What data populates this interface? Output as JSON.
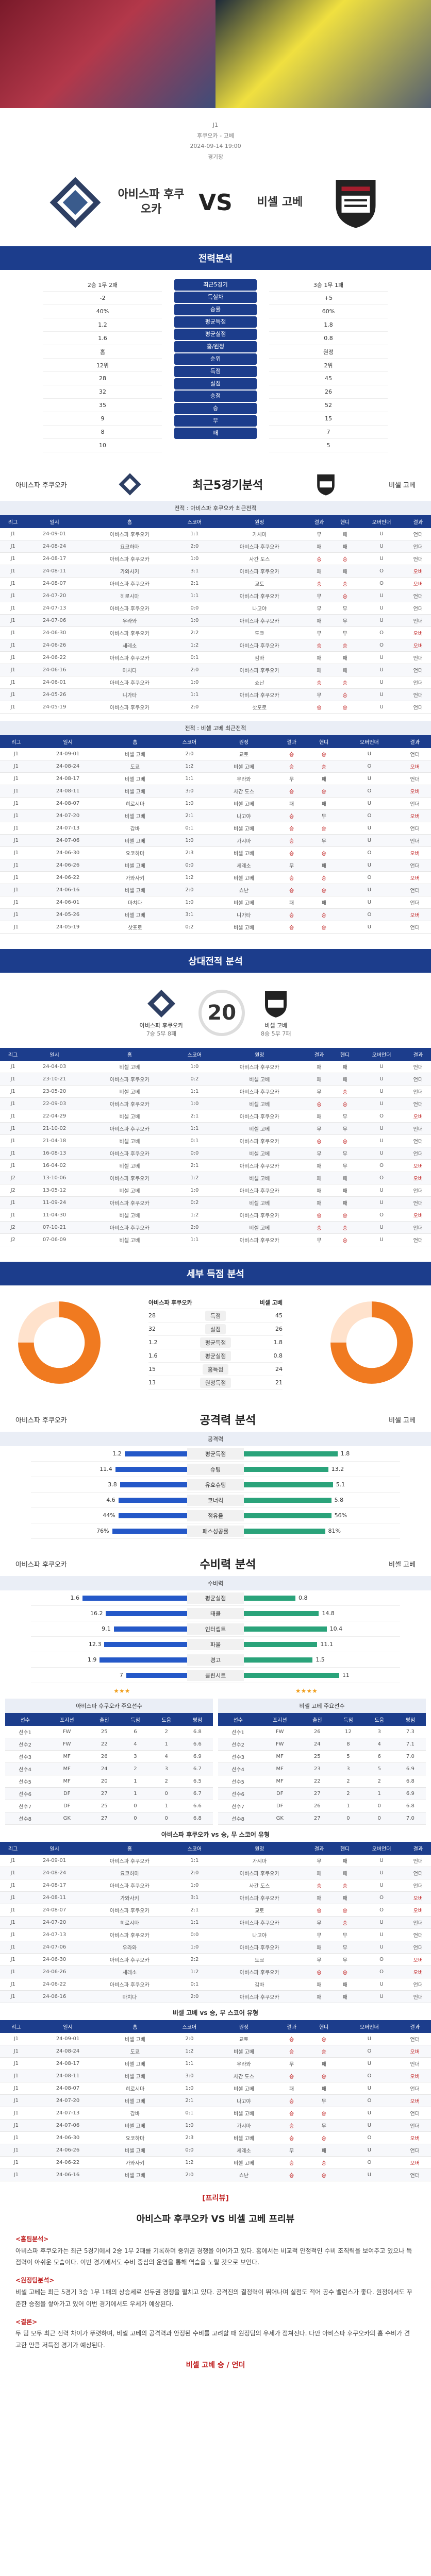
{
  "hero": {
    "left_alt": "",
    "right_alt": ""
  },
  "match": {
    "league": "J1",
    "title": "후쿠오카 - 고베",
    "kickoff": "2024-09-14 19:00",
    "venue": "경기장"
  },
  "home": {
    "name": "아비스파 후쿠오카",
    "short": "아비스파 후쿠오카"
  },
  "away": {
    "name": "비셀 고베",
    "short": "비셀 고베"
  },
  "vs": "VS",
  "sections": {
    "compare": "전력분석",
    "recent": "최근5경기분석",
    "h2h": "상대전적 분석",
    "detail": "세부 득점 분석",
    "attack": "공격력 분석",
    "defense": "수비력 분석",
    "preview_title": "아비스파 후쿠오카 VS 비셀 고베 프리뷰"
  },
  "compare_rows": {
    "labels": [
      "최근5경기",
      "득실차",
      "승률",
      "평균득점",
      "평균실점",
      "홈/원정",
      "순위",
      "득점",
      "실점",
      "승점",
      "승",
      "무",
      "패"
    ],
    "home": [
      "2승 1무 2패",
      "-2",
      "40%",
      "1.2",
      "1.6",
      "홈",
      "12위",
      "28",
      "32",
      "35",
      "9",
      "8",
      "10"
    ],
    "away": [
      "3승 1무 1패",
      "+5",
      "60%",
      "1.8",
      "0.8",
      "원정",
      "2위",
      "45",
      "26",
      "52",
      "15",
      "7",
      "5"
    ]
  },
  "recent_home_header": "전적 : 아비스파 후쿠오카 최근전적",
  "recent_away_header": "전적 : 비셀 고베 최근전적",
  "table_cols": [
    "리그",
    "일시",
    "홈",
    "스코어",
    "원정",
    "결과",
    "핸디",
    "오버언더",
    "결과"
  ],
  "recent_home": [
    [
      "J1",
      "24-09-01",
      "아비스파 후쿠오카",
      "1:1",
      "가시마",
      "무",
      "패",
      "U",
      "언더"
    ],
    [
      "J1",
      "24-08-24",
      "요코하마",
      "2:0",
      "아비스파 후쿠오카",
      "패",
      "패",
      "U",
      "언더"
    ],
    [
      "J1",
      "24-08-17",
      "아비스파 후쿠오카",
      "1:0",
      "사간 도스",
      "승",
      "승",
      "U",
      "언더"
    ],
    [
      "J1",
      "24-08-11",
      "가와사키",
      "3:1",
      "아비스파 후쿠오카",
      "패",
      "패",
      "O",
      "오버"
    ],
    [
      "J1",
      "24-08-07",
      "아비스파 후쿠오카",
      "2:1",
      "교토",
      "승",
      "승",
      "O",
      "오버"
    ],
    [
      "J1",
      "24-07-20",
      "히로시마",
      "1:1",
      "아비스파 후쿠오카",
      "무",
      "승",
      "U",
      "언더"
    ],
    [
      "J1",
      "24-07-13",
      "아비스파 후쿠오카",
      "0:0",
      "나고야",
      "무",
      "무",
      "U",
      "언더"
    ],
    [
      "J1",
      "24-07-06",
      "우라와",
      "1:0",
      "아비스파 후쿠오카",
      "패",
      "무",
      "U",
      "언더"
    ],
    [
      "J1",
      "24-06-30",
      "아비스파 후쿠오카",
      "2:2",
      "도쿄",
      "무",
      "무",
      "O",
      "오버"
    ],
    [
      "J1",
      "24-06-26",
      "세레소",
      "1:2",
      "아비스파 후쿠오카",
      "승",
      "승",
      "O",
      "오버"
    ],
    [
      "J1",
      "24-06-22",
      "아비스파 후쿠오카",
      "0:1",
      "감바",
      "패",
      "패",
      "U",
      "언더"
    ],
    [
      "J1",
      "24-06-16",
      "마치다",
      "2:0",
      "아비스파 후쿠오카",
      "패",
      "패",
      "U",
      "언더"
    ],
    [
      "J1",
      "24-06-01",
      "아비스파 후쿠오카",
      "1:0",
      "쇼난",
      "승",
      "승",
      "U",
      "언더"
    ],
    [
      "J1",
      "24-05-26",
      "니가타",
      "1:1",
      "아비스파 후쿠오카",
      "무",
      "승",
      "U",
      "언더"
    ],
    [
      "J1",
      "24-05-19",
      "아비스파 후쿠오카",
      "2:0",
      "삿포로",
      "승",
      "승",
      "U",
      "언더"
    ]
  ],
  "recent_away": [
    [
      "J1",
      "24-09-01",
      "비셀 고베",
      "2:0",
      "교토",
      "승",
      "승",
      "U",
      "언더"
    ],
    [
      "J1",
      "24-08-24",
      "도쿄",
      "1:2",
      "비셀 고베",
      "승",
      "승",
      "O",
      "오버"
    ],
    [
      "J1",
      "24-08-17",
      "비셀 고베",
      "1:1",
      "우라와",
      "무",
      "패",
      "U",
      "언더"
    ],
    [
      "J1",
      "24-08-11",
      "비셀 고베",
      "3:0",
      "사간 도스",
      "승",
      "승",
      "O",
      "오버"
    ],
    [
      "J1",
      "24-08-07",
      "히로시마",
      "1:0",
      "비셀 고베",
      "패",
      "패",
      "U",
      "언더"
    ],
    [
      "J1",
      "24-07-20",
      "비셀 고베",
      "2:1",
      "나고야",
      "승",
      "무",
      "O",
      "오버"
    ],
    [
      "J1",
      "24-07-13",
      "감바",
      "0:1",
      "비셀 고베",
      "승",
      "승",
      "U",
      "언더"
    ],
    [
      "J1",
      "24-07-06",
      "비셀 고베",
      "1:0",
      "가시마",
      "승",
      "무",
      "U",
      "언더"
    ],
    [
      "J1",
      "24-06-30",
      "요코하마",
      "2:3",
      "비셀 고베",
      "승",
      "승",
      "O",
      "오버"
    ],
    [
      "J1",
      "24-06-26",
      "비셀 고베",
      "0:0",
      "세레소",
      "무",
      "패",
      "U",
      "언더"
    ],
    [
      "J1",
      "24-06-22",
      "가와사키",
      "1:2",
      "비셀 고베",
      "승",
      "승",
      "O",
      "오버"
    ],
    [
      "J1",
      "24-06-16",
      "비셀 고베",
      "2:0",
      "쇼난",
      "승",
      "승",
      "U",
      "언더"
    ],
    [
      "J1",
      "24-06-01",
      "마치다",
      "1:0",
      "비셀 고베",
      "패",
      "패",
      "U",
      "언더"
    ],
    [
      "J1",
      "24-05-26",
      "비셀 고베",
      "3:1",
      "니가타",
      "승",
      "승",
      "O",
      "오버"
    ],
    [
      "J1",
      "24-05-19",
      "삿포로",
      "0:2",
      "비셀 고베",
      "승",
      "승",
      "U",
      "언더"
    ]
  ],
  "h2h": {
    "count": "20",
    "home_record": "7승 5무 8패",
    "away_record": "8승 5무 7패",
    "rows": [
      [
        "J1",
        "24-04-03",
        "비셀 고베",
        "1:0",
        "아비스파 후쿠오카",
        "패",
        "패",
        "U",
        "언더"
      ],
      [
        "J1",
        "23-10-21",
        "아비스파 후쿠오카",
        "0:2",
        "비셀 고베",
        "패",
        "패",
        "U",
        "언더"
      ],
      [
        "J1",
        "23-05-20",
        "비셀 고베",
        "1:1",
        "아비스파 후쿠오카",
        "무",
        "승",
        "U",
        "언더"
      ],
      [
        "J1",
        "22-09-03",
        "아비스파 후쿠오카",
        "1:0",
        "비셀 고베",
        "승",
        "승",
        "U",
        "언더"
      ],
      [
        "J1",
        "22-04-29",
        "비셀 고베",
        "2:1",
        "아비스파 후쿠오카",
        "패",
        "무",
        "O",
        "오버"
      ],
      [
        "J1",
        "21-10-02",
        "아비스파 후쿠오카",
        "1:1",
        "비셀 고베",
        "무",
        "무",
        "U",
        "언더"
      ],
      [
        "J1",
        "21-04-18",
        "비셀 고베",
        "0:1",
        "아비스파 후쿠오카",
        "승",
        "승",
        "U",
        "언더"
      ],
      [
        "J1",
        "16-08-13",
        "아비스파 후쿠오카",
        "0:0",
        "비셀 고베",
        "무",
        "무",
        "U",
        "언더"
      ],
      [
        "J1",
        "16-04-02",
        "비셀 고베",
        "2:1",
        "아비스파 후쿠오카",
        "패",
        "무",
        "O",
        "오버"
      ],
      [
        "J2",
        "13-10-06",
        "아비스파 후쿠오카",
        "1:2",
        "비셀 고베",
        "패",
        "패",
        "O",
        "오버"
      ],
      [
        "J2",
        "13-05-12",
        "비셀 고베",
        "1:0",
        "아비스파 후쿠오카",
        "패",
        "패",
        "U",
        "언더"
      ],
      [
        "J1",
        "11-09-24",
        "아비스파 후쿠오카",
        "0:2",
        "비셀 고베",
        "패",
        "패",
        "U",
        "언더"
      ],
      [
        "J1",
        "11-04-30",
        "비셀 고베",
        "1:2",
        "아비스파 후쿠오카",
        "승",
        "승",
        "O",
        "오버"
      ],
      [
        "J2",
        "07-10-21",
        "아비스파 후쿠오카",
        "2:0",
        "비셀 고베",
        "승",
        "승",
        "U",
        "언더"
      ],
      [
        "J2",
        "07-06-09",
        "비셀 고베",
        "1:1",
        "아비스파 후쿠오카",
        "무",
        "승",
        "U",
        "언더"
      ]
    ]
  },
  "detail": {
    "home_label": "아비스파 후쿠오카",
    "away_label": "비셀 고베",
    "rows": [
      {
        "label": "득점",
        "home": "28",
        "away": "45"
      },
      {
        "label": "실점",
        "home": "32",
        "away": "26"
      },
      {
        "label": "평균득점",
        "home": "1.2",
        "away": "1.8"
      },
      {
        "label": "평균실점",
        "home": "1.6",
        "away": "0.8"
      },
      {
        "label": "홈득점",
        "home": "15",
        "away": "24"
      },
      {
        "label": "원정득점",
        "home": "13",
        "away": "21"
      }
    ],
    "home_pct": 0.75,
    "away_pct": 0.75
  },
  "attack": {
    "header": "공격력",
    "rows": [
      {
        "label": "평균득점",
        "home": "1.2",
        "away": "1.8",
        "hv": 0.4,
        "av": 0.6
      },
      {
        "label": "슈팅",
        "home": "11.4",
        "away": "13.2",
        "hv": 0.46,
        "av": 0.54
      },
      {
        "label": "유효슈팅",
        "home": "3.8",
        "away": "5.1",
        "hv": 0.43,
        "av": 0.57
      },
      {
        "label": "코너킥",
        "home": "4.6",
        "away": "5.8",
        "hv": 0.44,
        "av": 0.56
      },
      {
        "label": "점유율",
        "home": "44%",
        "away": "56%",
        "hv": 0.44,
        "av": 0.56
      },
      {
        "label": "패스성공률",
        "home": "76%",
        "away": "81%",
        "hv": 0.48,
        "av": 0.52
      }
    ]
  },
  "defense": {
    "header": "수비력",
    "rows": [
      {
        "label": "평균실점",
        "home": "1.6",
        "away": "0.8",
        "hv": 0.67,
        "av": 0.33
      },
      {
        "label": "태클",
        "home": "16.2",
        "away": "14.8",
        "hv": 0.52,
        "av": 0.48
      },
      {
        "label": "인터셉트",
        "home": "9.1",
        "away": "10.4",
        "hv": 0.47,
        "av": 0.53
      },
      {
        "label": "파울",
        "home": "12.3",
        "away": "11.1",
        "hv": 0.53,
        "av": 0.47
      },
      {
        "label": "경고",
        "home": "1.9",
        "away": "1.5",
        "hv": 0.56,
        "av": 0.44
      },
      {
        "label": "클린시트",
        "home": "7",
        "away": "11",
        "hv": 0.39,
        "av": 0.61
      }
    ]
  },
  "stars": {
    "home": "★★★",
    "away": "★★★★"
  },
  "player_title_home": "아비스파 후쿠오카 주요선수",
  "player_title_away": "비셀 고베 주요선수",
  "player_cols": [
    "선수",
    "포지션",
    "출전",
    "득점",
    "도움",
    "평점"
  ],
  "players_home": [
    [
      "선수1",
      "FW",
      "25",
      "6",
      "2",
      "6.8"
    ],
    [
      "선수2",
      "FW",
      "22",
      "4",
      "1",
      "6.6"
    ],
    [
      "선수3",
      "MF",
      "26",
      "3",
      "4",
      "6.9"
    ],
    [
      "선수4",
      "MF",
      "24",
      "2",
      "3",
      "6.7"
    ],
    [
      "선수5",
      "MF",
      "20",
      "1",
      "2",
      "6.5"
    ],
    [
      "선수6",
      "DF",
      "27",
      "1",
      "0",
      "6.7"
    ],
    [
      "선수7",
      "DF",
      "25",
      "0",
      "1",
      "6.6"
    ],
    [
      "선수8",
      "GK",
      "27",
      "0",
      "0",
      "6.8"
    ]
  ],
  "players_away": [
    [
      "선수1",
      "FW",
      "26",
      "12",
      "3",
      "7.3"
    ],
    [
      "선수2",
      "FW",
      "24",
      "8",
      "4",
      "7.1"
    ],
    [
      "선수3",
      "MF",
      "25",
      "5",
      "6",
      "7.0"
    ],
    [
      "선수4",
      "MF",
      "23",
      "3",
      "5",
      "6.9"
    ],
    [
      "선수5",
      "MF",
      "22",
      "2",
      "2",
      "6.8"
    ],
    [
      "선수6",
      "DF",
      "27",
      "2",
      "1",
      "6.9"
    ],
    [
      "선수7",
      "DF",
      "26",
      "1",
      "0",
      "6.8"
    ],
    [
      "선수8",
      "GK",
      "27",
      "0",
      "0",
      "7.0"
    ]
  ],
  "tables_small_title_home": "아비스파 후쿠오카 vs 승, 무 스코어 유형",
  "tables_small_title_away": "비셀 고베 vs 승, 무 스코어 유형",
  "preview": {
    "pre_label": "[프리뷰]",
    "title": "아비스파 후쿠오카 VS 비셀 고베 프리뷰",
    "home_head": "<홈팀분석>",
    "home_text": "아비스파 후쿠오카는 최근 5경기에서 2승 1무 2패를 기록하며 중위권 경쟁을 이어가고 있다. 홈에서는 비교적 안정적인 수비 조직력을 보여주고 있으나 득점력이 아쉬운 모습이다. 이번 경기에서도 수비 중심의 운영을 통해 역습을 노릴 것으로 보인다.",
    "away_head": "<원정팀분석>",
    "away_text": "비셀 고베는 최근 5경기 3승 1무 1패의 상승세로 선두권 경쟁을 펼치고 있다. 공격진의 결정력이 뛰어나며 실점도 적어 공수 밸런스가 좋다. 원정에서도 꾸준한 승점을 쌓아가고 있어 이번 경기에서도 우세가 예상된다.",
    "conclusion_head": "<결론>",
    "conclusion_text": "두 팀 모두 최근 전력 차이가 뚜렷하며, 비셀 고베의 공격력과 안정된 수비를 고려할 때 원정팀의 우세가 점쳐진다. 다만 아비스파 후쿠오카의 홈 수비가 견고한 만큼 저득점 경기가 예상된다.",
    "pick": "비셀 고베 승 / 언더"
  }
}
